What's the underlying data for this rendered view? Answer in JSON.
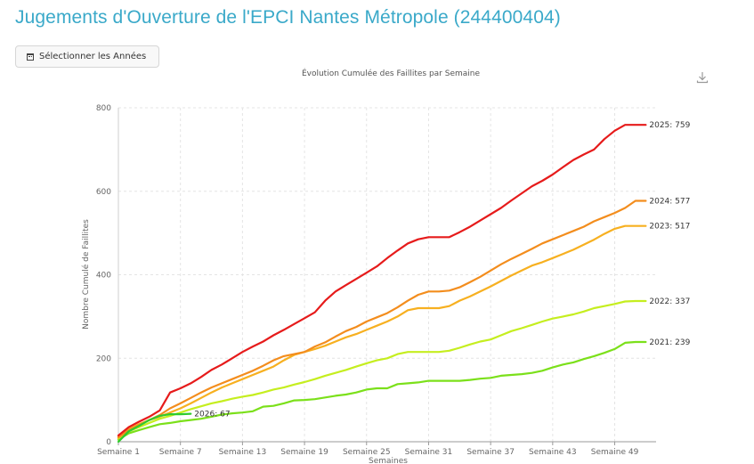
{
  "header": {
    "title": "Jugements d'Ouverture de l'EPCI Nantes Métropole (244400404)",
    "select_years_label": "Sélectionner les Années"
  },
  "icons": {
    "calendar": "calendar-icon",
    "download": "download-icon"
  },
  "chart_data": {
    "type": "line",
    "title": "Évolution Cumulée des Faillites par Semaine",
    "xlabel": "Semaines",
    "ylabel": "Nombre Cumulé de Faillites",
    "ylim": [
      0,
      800
    ],
    "xlim": [
      1,
      53
    ],
    "x_ticks": [
      1,
      7,
      13,
      19,
      25,
      31,
      37,
      43,
      49
    ],
    "x_tick_labels": [
      "Semaine 1",
      "Semaine 7",
      "Semaine 13",
      "Semaine 19",
      "Semaine 25",
      "Semaine 31",
      "Semaine 37",
      "Semaine 43",
      "Semaine 49"
    ],
    "y_ticks": [
      0,
      200,
      400,
      600,
      800
    ],
    "y_tick_labels": [
      "0",
      "200",
      "400",
      "600",
      "800"
    ],
    "grid": true,
    "series": [
      {
        "name": "2021",
        "color": "#7be01a",
        "end_label": "2021: 239",
        "values": [
          5,
          20,
          28,
          35,
          42,
          45,
          49,
          52,
          55,
          60,
          65,
          68,
          70,
          73,
          84,
          86,
          92,
          99,
          100,
          102,
          106,
          110,
          113,
          118,
          125,
          128,
          128,
          138,
          140,
          142,
          146,
          146,
          146,
          146,
          148,
          151,
          153,
          158,
          160,
          162,
          165,
          170,
          178,
          185,
          190,
          198,
          205,
          213,
          222,
          237,
          239,
          239
        ]
      },
      {
        "name": "2022",
        "color": "#c5ee1f",
        "end_label": "2022: 337",
        "values": [
          8,
          25,
          35,
          45,
          55,
          62,
          70,
          78,
          85,
          92,
          97,
          103,
          108,
          112,
          118,
          125,
          130,
          137,
          143,
          150,
          158,
          165,
          172,
          180,
          188,
          195,
          200,
          210,
          215,
          215,
          215,
          215,
          218,
          225,
          233,
          240,
          245,
          255,
          265,
          272,
          280,
          288,
          295,
          300,
          305,
          312,
          320,
          325,
          330,
          336,
          337,
          337
        ]
      },
      {
        "name": "2023",
        "color": "#f7b020",
        "end_label": "2023: 517",
        "values": [
          12,
          30,
          42,
          52,
          60,
          70,
          80,
          92,
          105,
          118,
          130,
          140,
          150,
          160,
          170,
          180,
          195,
          208,
          215,
          222,
          230,
          240,
          250,
          258,
          268,
          278,
          288,
          300,
          315,
          320,
          320,
          320,
          325,
          338,
          348,
          360,
          372,
          385,
          398,
          410,
          422,
          430,
          440,
          450,
          460,
          472,
          484,
          498,
          510,
          517,
          517,
          517
        ]
      },
      {
        "name": "2024",
        "color": "#f38d1d",
        "end_label": "2024: 577",
        "values": [
          10,
          28,
          40,
          52,
          64,
          80,
          92,
          105,
          118,
          130,
          140,
          150,
          160,
          170,
          182,
          195,
          205,
          210,
          215,
          228,
          238,
          252,
          265,
          275,
          288,
          298,
          308,
          322,
          338,
          352,
          360,
          360,
          362,
          370,
          382,
          395,
          410,
          425,
          438,
          450,
          462,
          475,
          485,
          495,
          505,
          515,
          528,
          538,
          548,
          560,
          577,
          577
        ]
      },
      {
        "name": "2025",
        "color": "#e61b1b",
        "end_label": "2025: 759",
        "values": [
          15,
          35,
          48,
          60,
          75,
          118,
          128,
          140,
          155,
          172,
          185,
          200,
          215,
          228,
          240,
          255,
          268,
          282,
          296,
          310,
          338,
          360,
          375,
          390,
          405,
          420,
          440,
          458,
          475,
          485,
          490,
          490,
          490,
          502,
          515,
          530,
          545,
          560,
          578,
          595,
          612,
          625,
          640,
          658,
          675,
          688,
          700,
          725,
          745,
          759,
          759,
          759
        ]
      },
      {
        "name": "2026",
        "color": "#2ecb2e",
        "end_label": "2026: 67",
        "values": [
          0,
          25,
          38,
          52,
          62,
          66,
          66,
          67
        ]
      }
    ]
  }
}
